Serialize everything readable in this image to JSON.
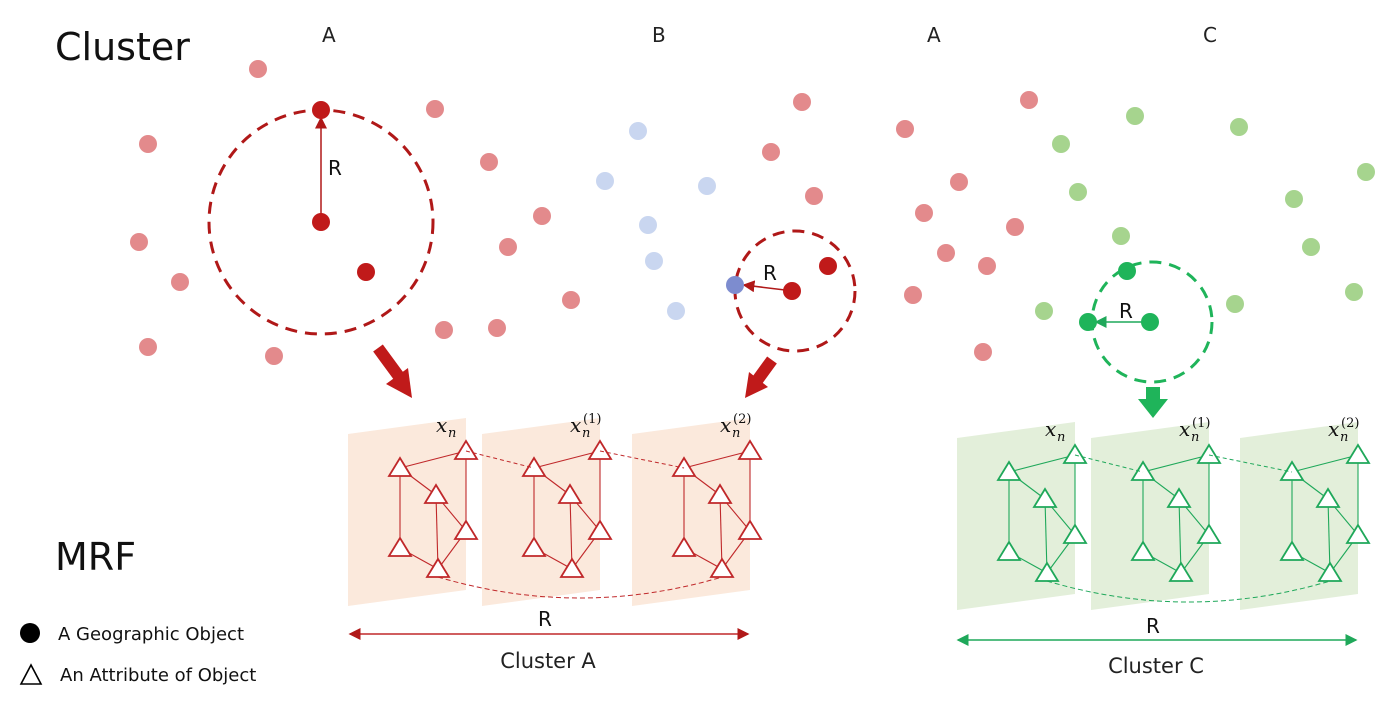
{
  "titles": {
    "cluster": "Cluster",
    "mrf": "MRF"
  },
  "column_labels": [
    "A",
    "B",
    "A",
    "C"
  ],
  "radius_label": "R",
  "layer_labels": {
    "base": "x",
    "subscript": "n",
    "superscripts": [
      "",
      "(1)",
      "(2)"
    ]
  },
  "clusters": [
    {
      "name": "Cluster A",
      "color": "#c0282a",
      "light": "#fbe9dc"
    },
    {
      "name": "Cluster C",
      "color": "#1fa85a",
      "light": "#e3efda"
    }
  ],
  "legend": {
    "geo_object": "A Geographic Object",
    "attribute": "An Attribute of Object"
  },
  "colors": {
    "red_point": "#e38a8c",
    "blue_point": "#c9d6f0",
    "green_point": "#a6d48e",
    "dark_red": "#b01818",
    "dark_green": "#1fb45a"
  }
}
